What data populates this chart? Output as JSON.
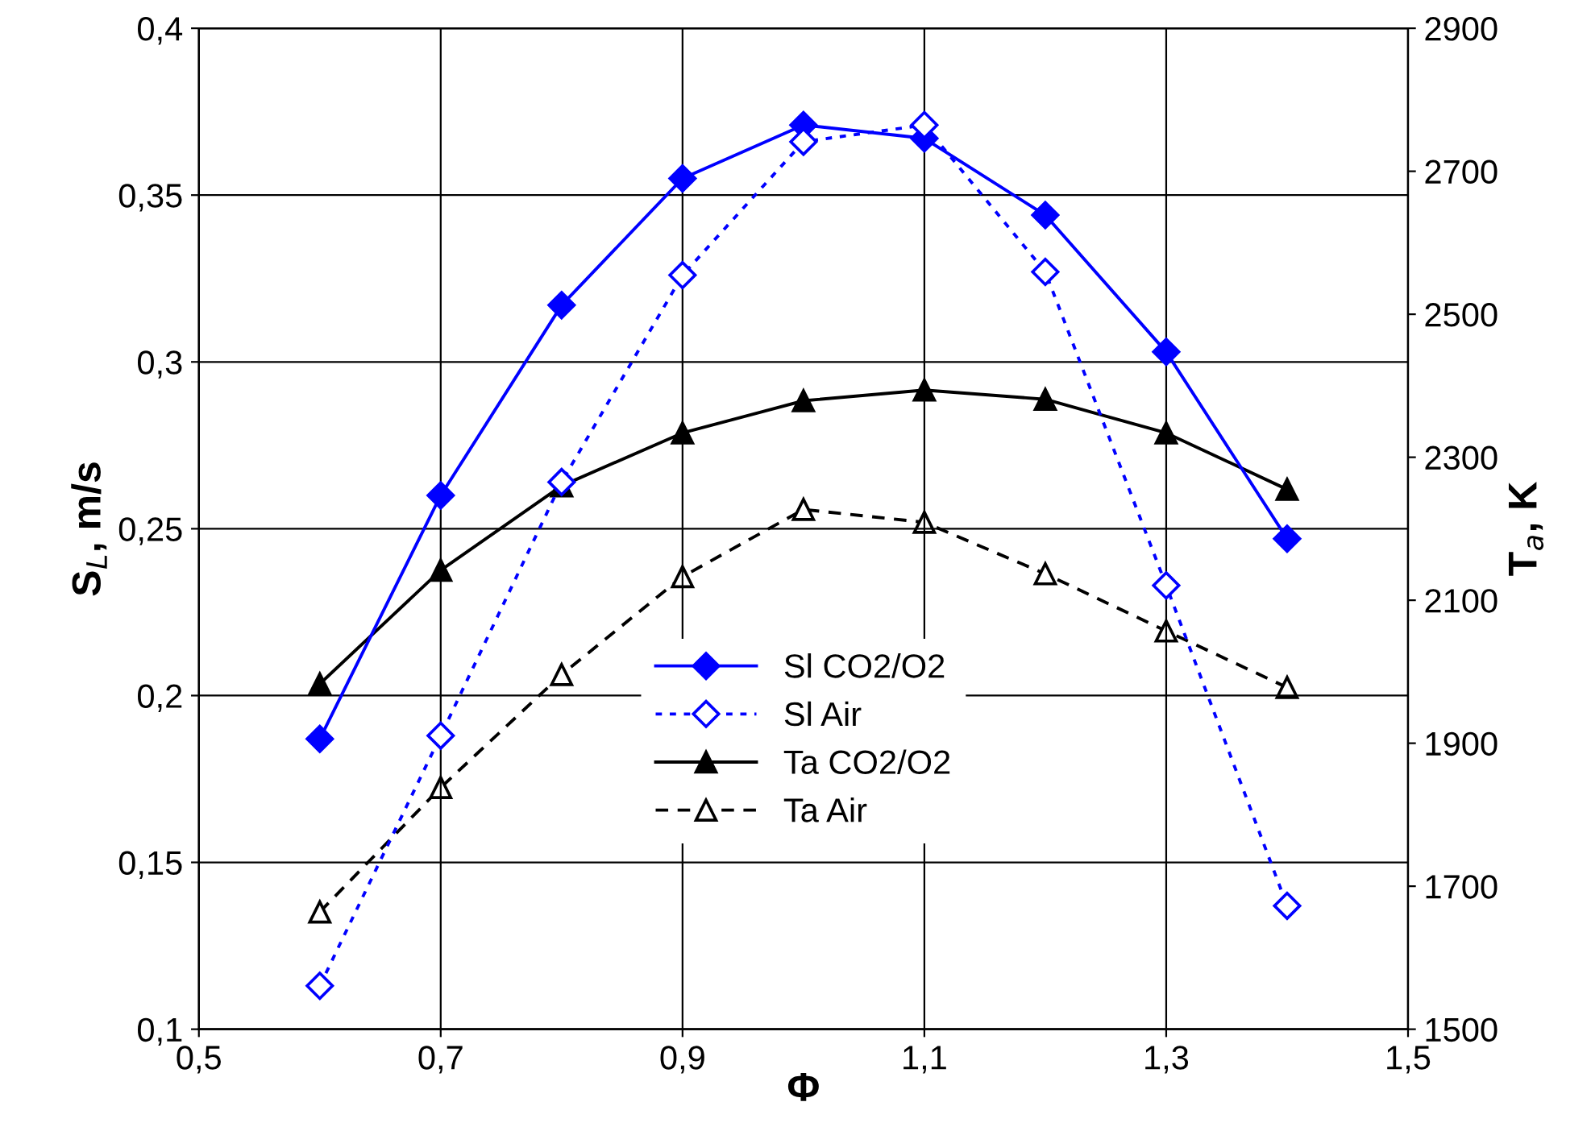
{
  "chart_data": {
    "type": "line",
    "xlabel": "Φ",
    "ylabel": "S$_{L}$, m/s",
    "y2label": "T$_{a}$, K",
    "x": [
      0.6,
      0.7,
      0.8,
      0.9,
      1.0,
      1.1,
      1.2,
      1.3,
      1.4
    ],
    "xlim": [
      0.5,
      1.5
    ],
    "xticks": [
      {
        "value": 0.5,
        "label": "0,5"
      },
      {
        "value": 0.7,
        "label": "0,7"
      },
      {
        "value": 0.9,
        "label": "0,9"
      },
      {
        "value": 1.1,
        "label": "1,1"
      },
      {
        "value": 1.3,
        "label": "1,3"
      },
      {
        "value": 1.5,
        "label": "1,5"
      }
    ],
    "ylim": [
      0.1,
      0.4
    ],
    "yticks": [
      {
        "value": 0.1,
        "label": "0,1"
      },
      {
        "value": 0.15,
        "label": "0,15"
      },
      {
        "value": 0.2,
        "label": "0,2"
      },
      {
        "value": 0.25,
        "label": "0,25"
      },
      {
        "value": 0.3,
        "label": "0,3"
      },
      {
        "value": 0.35,
        "label": "0,35"
      },
      {
        "value": 0.4,
        "label": "0,4"
      }
    ],
    "y2lim": [
      1500,
      2900
    ],
    "y2ticks": [
      1500,
      1700,
      1900,
      2100,
      2300,
      2500,
      2700,
      2900
    ],
    "grid": true,
    "legend": "bottom",
    "series": [
      {
        "name": "Sl CO2/O2",
        "color": "#0000ff",
        "marker": "diamond",
        "line_style": "solid",
        "values": [
          0.187,
          0.26,
          0.317,
          0.355,
          0.371,
          0.367,
          0.344,
          0.303,
          0.247
        ]
      },
      {
        "name": "Sl Air",
        "color": "#0000ff",
        "marker": "diamond",
        "line_style": "dotted",
        "values": [
          0.113,
          0.188,
          0.264,
          0.326,
          0.366,
          0.371,
          0.327,
          0.233,
          0.137
        ]
      },
      {
        "name": "Ta CO2/O2",
        "color": "#000000",
        "marker": "triangle",
        "line_style": "solid",
        "axis": "y2",
        "values": [
          1983,
          2142,
          2260,
          2334,
          2379,
          2394,
          2381,
          2334,
          2255
        ]
      },
      {
        "name": "Ta Air",
        "color": "#000000",
        "marker": "triangle",
        "line_style": "dashed",
        "axis": "y2",
        "values": [
          1664,
          1838,
          1996,
          2133,
          2227,
          2209,
          2137,
          2057,
          1978
        ]
      }
    ]
  }
}
